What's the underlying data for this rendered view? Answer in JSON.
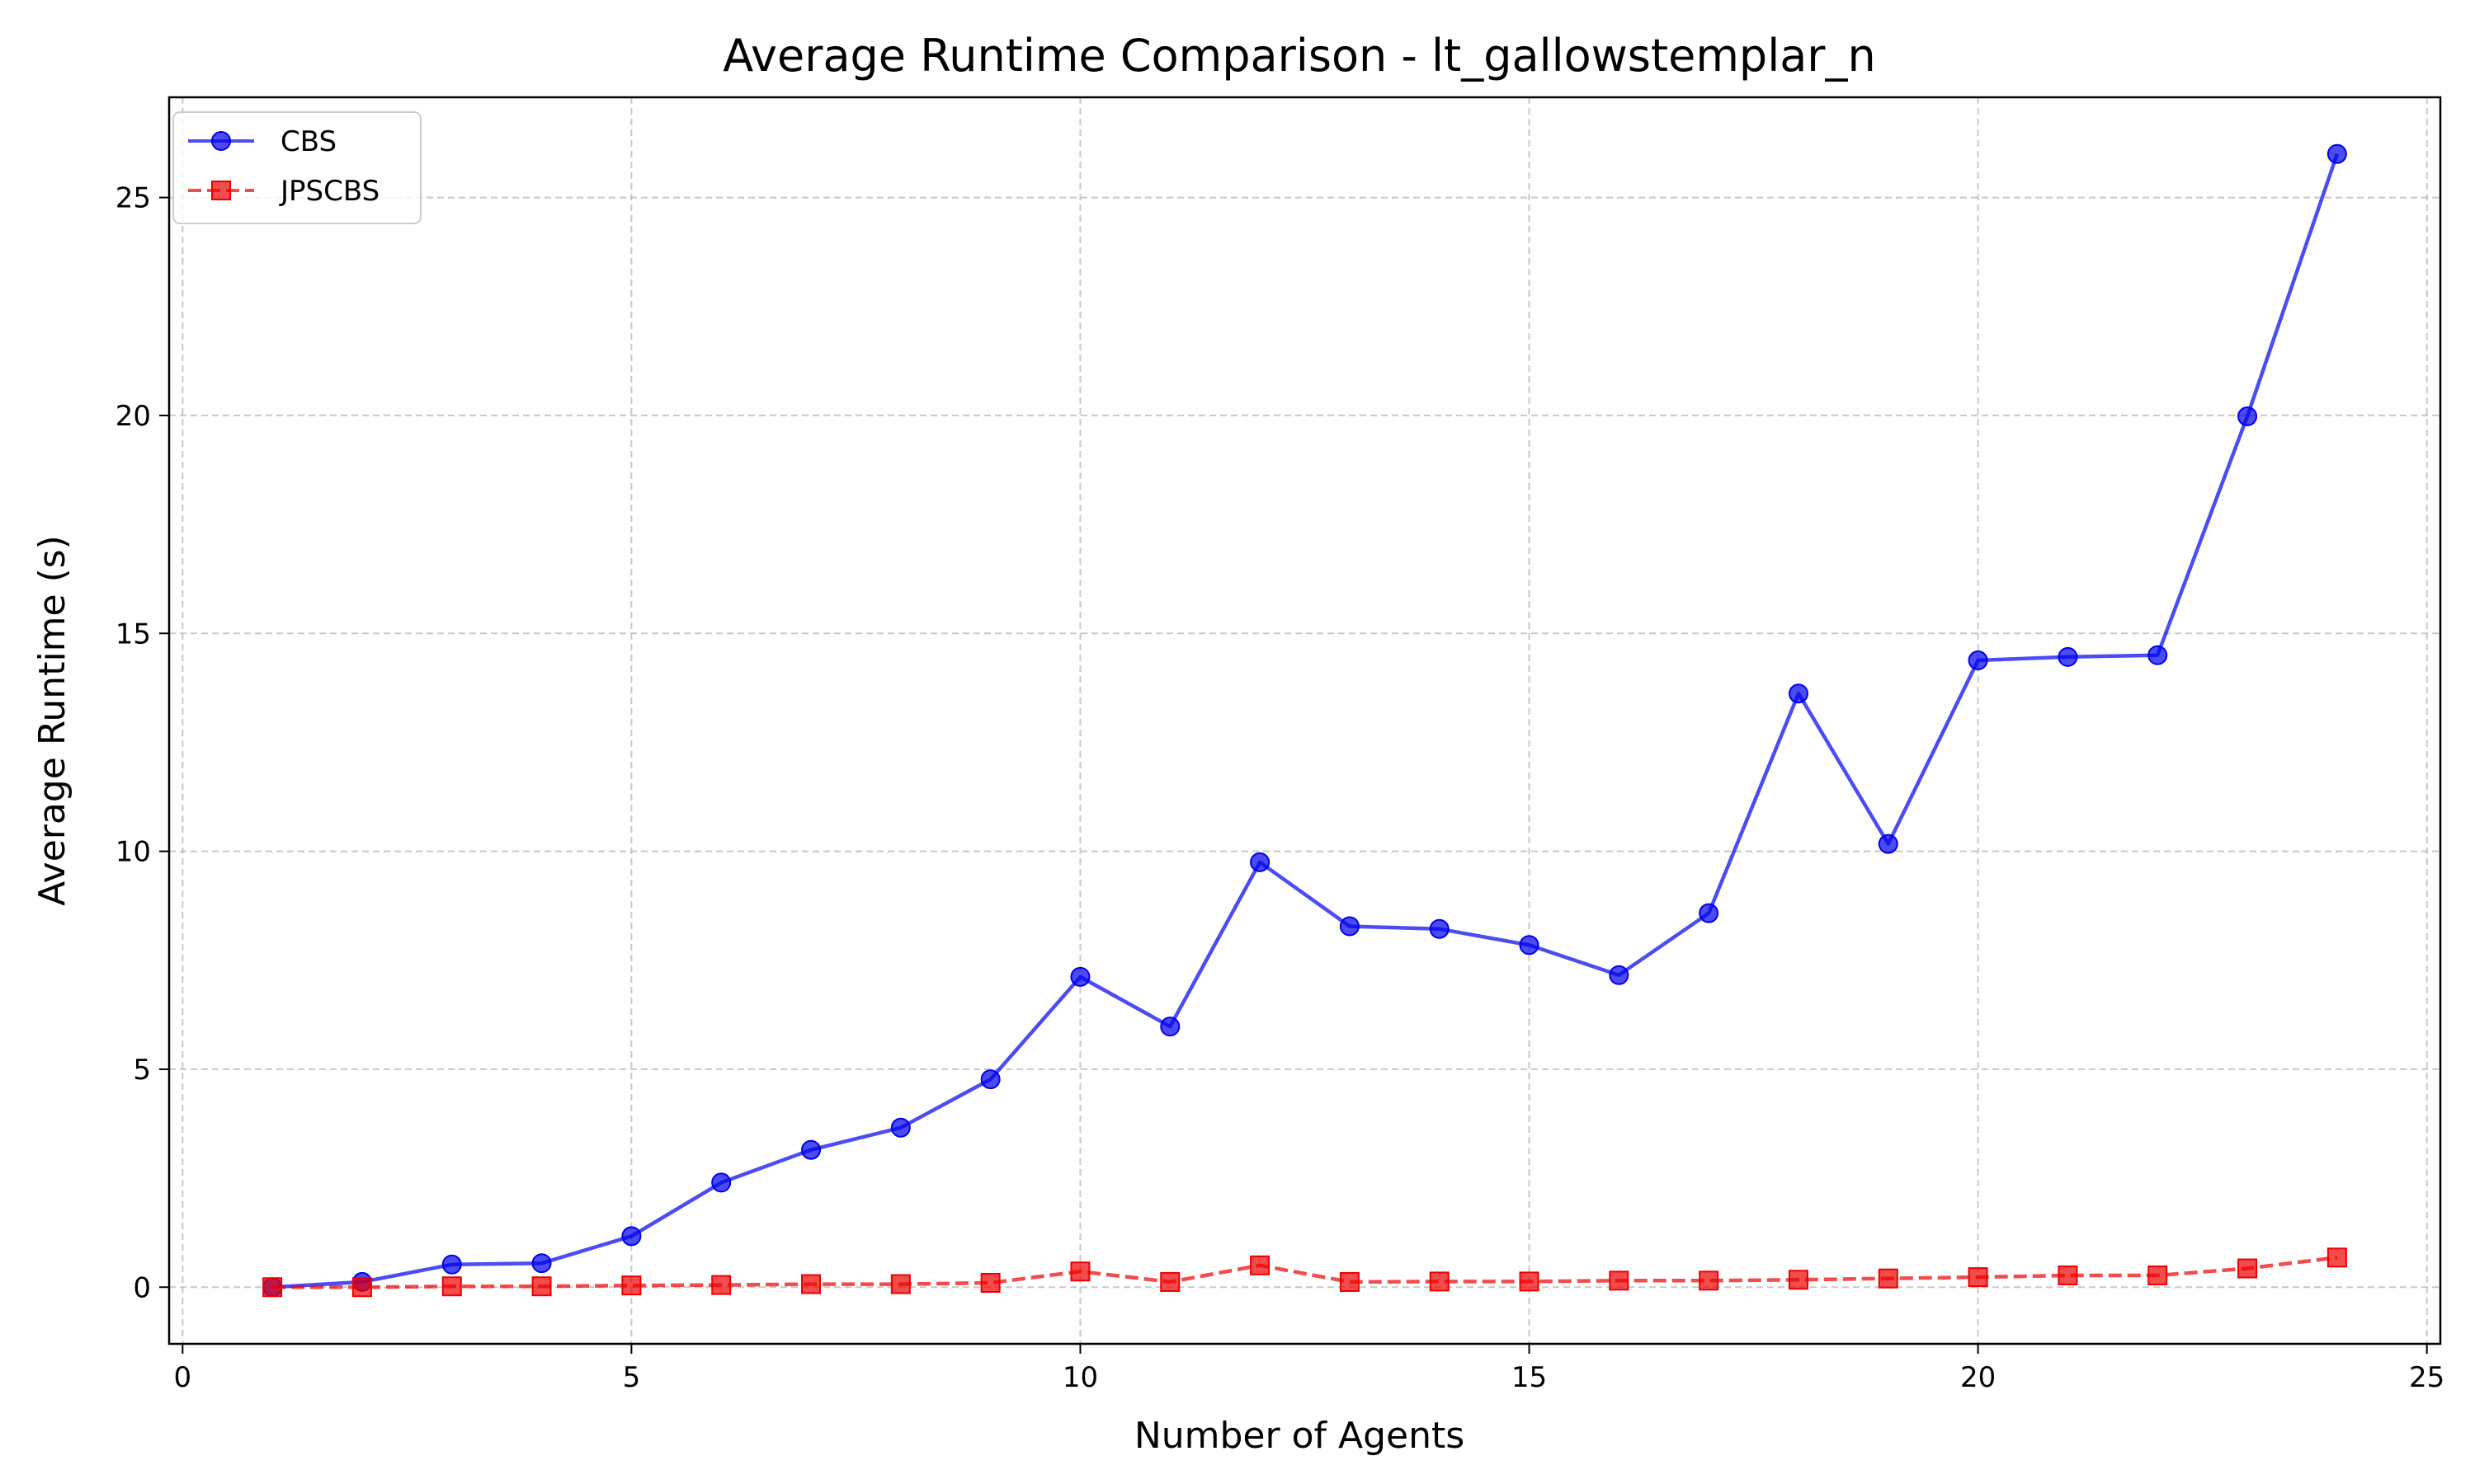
{
  "chart_data": {
    "type": "line",
    "title": "Average Runtime Comparison - lt_gallowstemplar_n",
    "xlabel": "Number of Agents",
    "ylabel": "Average Runtime (s)",
    "xlim": [
      -0.15,
      25.15
    ],
    "ylim": [
      -1.3,
      27.3
    ],
    "xticks": [
      0,
      5,
      10,
      15,
      20,
      25
    ],
    "yticks": [
      0,
      5,
      10,
      15,
      20,
      25
    ],
    "grid": true,
    "legend_position": "top-left",
    "x": [
      1,
      2,
      3,
      4,
      5,
      6,
      7,
      8,
      9,
      10,
      11,
      12,
      13,
      14,
      15,
      16,
      17,
      18,
      19,
      20,
      21,
      22,
      23,
      24
    ],
    "series": [
      {
        "name": "CBS",
        "color": "#0000ee",
        "line_style": "solid",
        "marker": "circle",
        "values": [
          0.0,
          0.12,
          0.52,
          0.55,
          1.17,
          2.4,
          3.15,
          3.66,
          4.77,
          7.12,
          5.98,
          9.75,
          8.28,
          8.22,
          7.85,
          7.16,
          8.58,
          13.62,
          10.17,
          14.38,
          14.46,
          14.5,
          19.98,
          26.0
        ]
      },
      {
        "name": "JPSCBS",
        "color": "#ee0000",
        "line_style": "dashed",
        "marker": "square",
        "values": [
          0.0,
          0.0,
          0.02,
          0.02,
          0.04,
          0.05,
          0.07,
          0.07,
          0.1,
          0.36,
          0.12,
          0.5,
          0.12,
          0.13,
          0.13,
          0.15,
          0.15,
          0.17,
          0.2,
          0.23,
          0.27,
          0.27,
          0.43,
          0.68
        ]
      }
    ]
  }
}
